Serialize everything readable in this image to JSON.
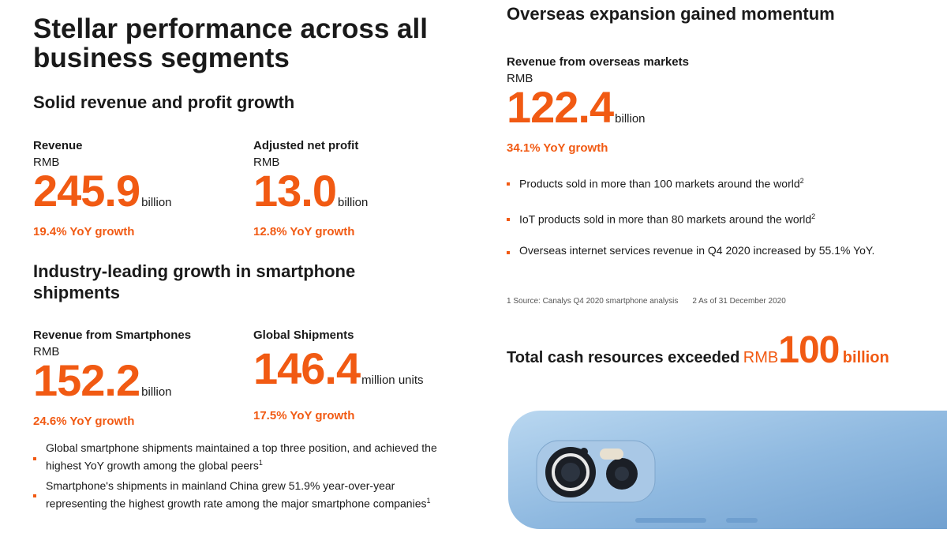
{
  "left": {
    "title": "Stellar performance across all business segments",
    "section1": {
      "heading": "Solid revenue and profit growth",
      "metrics": [
        {
          "label": "Revenue",
          "currency": "RMB",
          "value": "245.9",
          "unit": "billion",
          "growth": "19.4% YoY growth"
        },
        {
          "label": "Adjusted net profit",
          "currency": "RMB",
          "value": "13.0",
          "unit": "billion",
          "growth": "12.8% YoY growth"
        }
      ]
    },
    "section2": {
      "heading": "Industry-leading growth in smartphone shipments",
      "metrics": [
        {
          "label": "Revenue from Smartphones",
          "currency": "RMB",
          "value": "152.2",
          "unit": "billion",
          "growth": "24.6% YoY growth"
        },
        {
          "label": "Global Shipments",
          "value": "146.4",
          "unit": "million units",
          "growth": "17.5% YoY growth"
        }
      ],
      "bullets": [
        {
          "text": "Global smartphone shipments maintained a top three position, and achieved the highest YoY growth among the global peers",
          "sup": "1"
        },
        {
          "text": "Smartphone's shipments in mainland China grew 51.9% year-over-year representing the highest growth rate among the major smartphone companies",
          "sup": "1"
        }
      ]
    }
  },
  "right": {
    "title": "Overseas expansion gained momentum",
    "metric": {
      "label": "Revenue from overseas markets",
      "currency": "RMB",
      "value": "122.4",
      "unit": "billion",
      "growth": "34.1% YoY growth"
    },
    "bullets": [
      {
        "text": "Products sold in more than 100 markets around the world",
        "sup": "2"
      },
      {
        "text": "IoT products sold in more than 80 markets around the world",
        "sup": "2"
      },
      {
        "text": "Overseas internet services revenue in Q4 2020 increased by 55.1% YoY.",
        "sup": ""
      }
    ],
    "footnotes": [
      "1 Source: Canalys Q4 2020 smartphone analysis",
      "2 As of 31 December 2020"
    ],
    "cash": {
      "prefix": "Total cash resources exceeded",
      "currency": "RMB",
      "value": "100",
      "unit": "billion"
    }
  },
  "colors": {
    "accent": "#f15a13",
    "phone": "#9cc3e6"
  }
}
